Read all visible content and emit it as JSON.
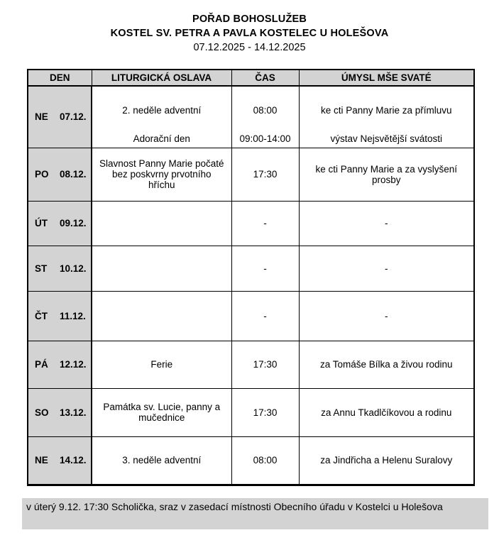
{
  "header": {
    "title_line1": "POŘAD BOHOSLUŽEB",
    "title_line2": "KOSTEL SV. PETRA A PAVLA KOSTELEC U HOLEŠOVA",
    "date_range": "07.12.2025 - 14.12.2025"
  },
  "table": {
    "columns": [
      "DEN",
      "LITURGICKÁ OSLAVA",
      "ČAS",
      "ÚMYSL MŠE SVATÉ"
    ],
    "rows": [
      {
        "day_abbr": "NE",
        "date": "07.12.",
        "celebration": "2. neděle adventní",
        "celebration2": "Adorační den",
        "time": "08:00",
        "time2": "09:00-14:00",
        "intention": "ke cti Panny Marie za přímluvu",
        "intention2": "výstav Nejsvětější svátosti"
      },
      {
        "day_abbr": "PO",
        "date": "08.12.",
        "celebration": "Slavnost Panny Marie počaté bez poskvrny prvotního hříchu",
        "time": "17:30",
        "intention": "ke cti Panny Marie a za vyslyšení prosby"
      },
      {
        "day_abbr": "ÚT",
        "date": "09.12.",
        "celebration": "",
        "time": "-",
        "intention": "-"
      },
      {
        "day_abbr": "ST",
        "date": "10.12.",
        "celebration": "",
        "time": "-",
        "intention": "-"
      },
      {
        "day_abbr": "ČT",
        "date": "11.12.",
        "celebration": "",
        "time": "-",
        "intention": "-"
      },
      {
        "day_abbr": "PÁ",
        "date": "12.12.",
        "celebration": "Ferie",
        "time": "17:30",
        "intention": "za Tomáše Bílka a živou rodinu"
      },
      {
        "day_abbr": "SO",
        "date": "13.12.",
        "celebration": "Památka sv. Lucie, panny a mučednice",
        "time": "17:30",
        "intention": "za Annu Tkadlčíkovou a rodinu"
      },
      {
        "day_abbr": "NE",
        "date": "14.12.",
        "celebration": "3. neděle adventní",
        "time": "08:00",
        "intention": "za Jindřicha a Helenu Suralovy"
      }
    ]
  },
  "footer": {
    "note": "v úterý 9.12. 17:30 Scholička, sraz v zasedací místnosti Obecního úřadu v Kostelci u Holešova"
  },
  "colors": {
    "cell_gray": "#d3d3d3",
    "border_black": "#000000"
  }
}
